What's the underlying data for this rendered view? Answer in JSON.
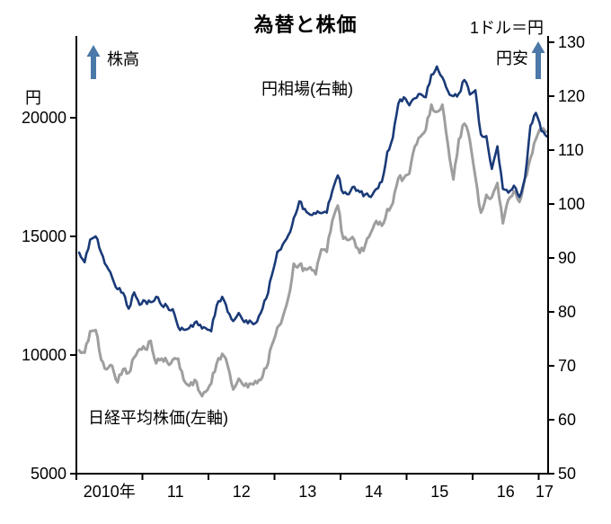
{
  "title": "為替と株価",
  "labels": {
    "left_unit": "円",
    "right_unit": "1ドル＝円",
    "stock_high": "株高",
    "yen_weak": "円安",
    "yen_series": "円相場(右軸)",
    "nikkei_series": "日経平均株価(左軸)"
  },
  "colors": {
    "yen_line": "#1a3a78",
    "nikkei_line": "#9e9e9e",
    "arrow": "#4a78a8",
    "axis": "#000000",
    "text": "#000000"
  },
  "chart_data": {
    "type": "line",
    "title": "為替と株価",
    "x_start": "2010-01",
    "x_step_months": 1,
    "x_ticks": [
      "2010年",
      "11",
      "12",
      "13",
      "14",
      "15",
      "16",
      "17"
    ],
    "left_axis": {
      "label": "円",
      "ticks": [
        5000,
        10000,
        15000,
        20000
      ],
      "range_at_plot": [
        5000,
        23450
      ]
    },
    "right_axis": {
      "label": "1ドル＝円",
      "ticks": [
        50,
        60,
        70,
        80,
        90,
        100,
        110,
        120,
        130
      ],
      "range": [
        50,
        130
      ]
    },
    "legend_position": "inline-annotations",
    "grid": false,
    "series": [
      {
        "name": "日経平均株価(左軸)",
        "axis": "left",
        "monthly_values": [
          10200,
          10100,
          11000,
          11050,
          9800,
          9400,
          9550,
          8850,
          9400,
          9250,
          9900,
          10250,
          10250,
          10600,
          9650,
          9850,
          9700,
          9800,
          9850,
          8950,
          8700,
          8950,
          8400,
          8450,
          8800,
          9650,
          10050,
          9550,
          8550,
          9000,
          8700,
          8800,
          8900,
          8950,
          9450,
          10400,
          11150,
          11600,
          12400,
          13850,
          13800,
          13650,
          13700,
          13400,
          14450,
          14350,
          15650,
          16300,
          14900,
          14850,
          14850,
          14300,
          14650,
          15150,
          15650,
          15450,
          16150,
          16400,
          17450,
          17450,
          17650,
          18800,
          19200,
          19500,
          20550,
          20250,
          20550,
          18900,
          17400,
          19100,
          19750,
          19050,
          17500,
          16000,
          16750,
          16650,
          17250,
          15550,
          16550,
          16900,
          16450,
          17450,
          18300,
          19100,
          19500,
          19400
        ]
      },
      {
        "name": "円相場(右軸)",
        "axis": "right",
        "monthly_values": [
          91.0,
          89.2,
          93.4,
          94.0,
          91.0,
          88.5,
          86.4,
          84.2,
          83.5,
          80.6,
          83.6,
          81.3,
          82.0,
          81.8,
          82.8,
          81.2,
          81.0,
          80.5,
          77.2,
          76.7,
          77.0,
          78.0,
          77.6,
          77.0,
          76.4,
          81.2,
          82.8,
          80.0,
          78.3,
          79.8,
          78.1,
          78.4,
          77.9,
          79.8,
          82.5,
          86.7,
          91.1,
          92.5,
          94.2,
          97.4,
          100.5,
          99.1,
          98.0,
          98.2,
          98.3,
          98.4,
          102.4,
          105.3,
          102.0,
          101.8,
          103.2,
          102.2,
          101.8,
          101.3,
          102.8,
          104.1,
          109.7,
          112.3,
          118.6,
          119.8,
          118.3,
          119.6,
          120.4,
          119.8,
          124.0,
          125.5,
          123.5,
          121.0,
          120.0,
          120.5,
          123.0,
          120.3,
          121.1,
          112.9,
          112.6,
          106.5,
          110.7,
          102.8,
          102.1,
          103.4,
          101.3,
          104.8,
          114.5,
          116.9,
          113.5,
          112.5
        ]
      }
    ]
  }
}
